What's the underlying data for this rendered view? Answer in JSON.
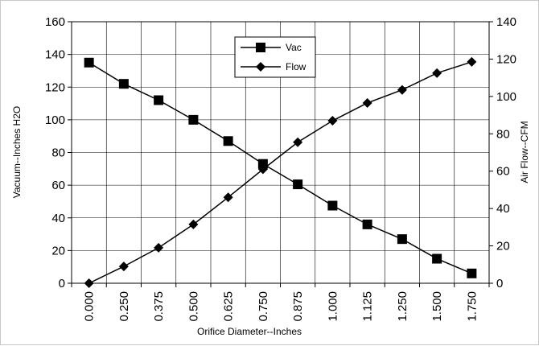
{
  "chart_data": {
    "type": "line",
    "title": "",
    "xlabel": "Orifice Diameter--Inches",
    "ylabel_left": "Vacuum--Inches H2O",
    "ylabel_right": "Air Flow--CFM",
    "categories": [
      "0.000",
      "0.250",
      "0.375",
      "0.500",
      "0.625",
      "0.750",
      "0.875",
      "1.000",
      "1.125",
      "1.250",
      "1.500",
      "1.750"
    ],
    "ylim_left": [
      0,
      160
    ],
    "yticks_left": [
      "0",
      "20",
      "40",
      "60",
      "80",
      "100",
      "120",
      "140",
      "160"
    ],
    "ylim_right": [
      0,
      140
    ],
    "yticks_right": [
      "0",
      "20",
      "40",
      "60",
      "80",
      "100",
      "120",
      "140"
    ],
    "grid": true,
    "legend_position": "top-center",
    "series": [
      {
        "name": "Vac",
        "axis": "left",
        "marker": "square",
        "color": "#000000",
        "values": [
          135,
          122,
          112,
          100,
          87,
          73,
          60.5,
          47.5,
          36,
          27,
          15,
          6
        ]
      },
      {
        "name": "Flow",
        "axis": "right",
        "marker": "diamond",
        "color": "#000000",
        "values": [
          0,
          9,
          19,
          31.5,
          46,
          61,
          75.5,
          87,
          96.5,
          103.5,
          112.5,
          118.5
        ]
      }
    ]
  }
}
